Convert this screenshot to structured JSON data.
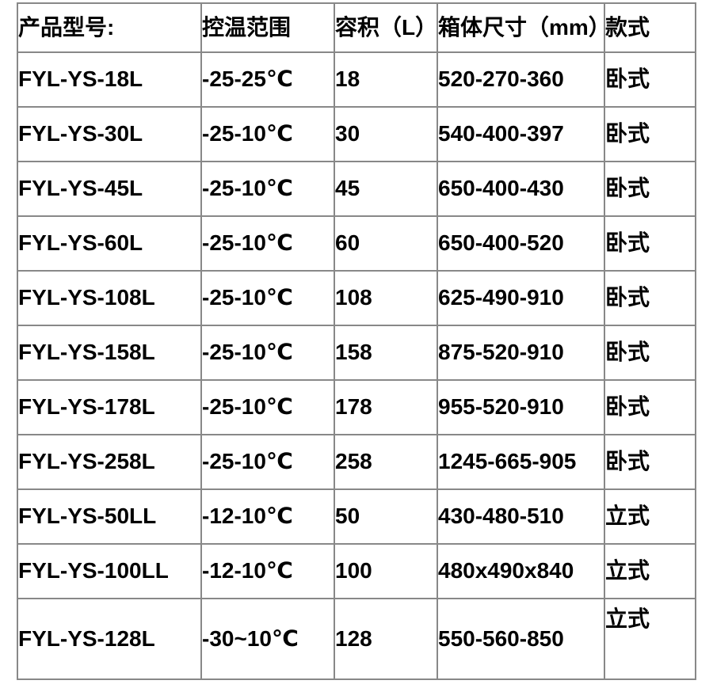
{
  "colors": {
    "background": "#ffffff",
    "text": "#000000",
    "table_border": "#888888"
  },
  "table": {
    "columns": [
      "产品型号:",
      "控温范围",
      "容积（L）",
      "箱体尺寸（mm）",
      "款式"
    ],
    "rows": [
      {
        "model": "FYL-YS-18L",
        "temp_range": "-25-25℃",
        "capacity_l": "18",
        "dimensions_mm": "520-270-360",
        "style": "卧式"
      },
      {
        "model": "FYL-YS-30L",
        "temp_range": "-25-10℃",
        "capacity_l": "30",
        "dimensions_mm": "540-400-397",
        "style": "卧式"
      },
      {
        "model": "FYL-YS-45L",
        "temp_range": "-25-10℃",
        "capacity_l": "45",
        "dimensions_mm": "650-400-430",
        "style": "卧式"
      },
      {
        "model": "FYL-YS-60L",
        "temp_range": "-25-10℃",
        "capacity_l": "60",
        "dimensions_mm": "650-400-520",
        "style": "卧式"
      },
      {
        "model": "FYL-YS-108L",
        "temp_range": "-25-10℃",
        "capacity_l": "108",
        "dimensions_mm": "625-490-910",
        "style": "卧式"
      },
      {
        "model": "FYL-YS-158L",
        "temp_range": "-25-10℃",
        "capacity_l": "158",
        "dimensions_mm": "875-520-910",
        "style": "卧式"
      },
      {
        "model": "FYL-YS-178L",
        "temp_range": "-25-10℃",
        "capacity_l": "178",
        "dimensions_mm": "955-520-910",
        "style": "卧式"
      },
      {
        "model": "FYL-YS-258L",
        "temp_range": "-25-10℃",
        "capacity_l": "258",
        "dimensions_mm": "1245-665-905",
        "style": "卧式"
      },
      {
        "model": "FYL-YS-50LL",
        "temp_range": "-12-10℃",
        "capacity_l": "50",
        "dimensions_mm": "430-480-510",
        "style": "立式"
      },
      {
        "model": "FYL-YS-100LL",
        "temp_range": "-12-10℃",
        "capacity_l": "100",
        "dimensions_mm": "480x490x840",
        "style": "立式"
      },
      {
        "model": "FYL-YS-128L",
        "temp_range": "-30~10℃",
        "capacity_l": "128",
        "dimensions_mm": "550-560-850",
        "style": "立式"
      }
    ]
  }
}
